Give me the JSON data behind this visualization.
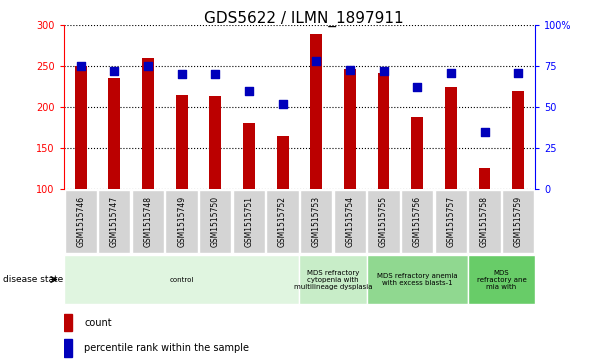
{
  "title": "GDS5622 / ILMN_1897911",
  "samples": [
    "GSM1515746",
    "GSM1515747",
    "GSM1515748",
    "GSM1515749",
    "GSM1515750",
    "GSM1515751",
    "GSM1515752",
    "GSM1515753",
    "GSM1515754",
    "GSM1515755",
    "GSM1515756",
    "GSM1515757",
    "GSM1515758",
    "GSM1515759"
  ],
  "counts": [
    250,
    235,
    260,
    215,
    213,
    180,
    165,
    290,
    247,
    242,
    188,
    225,
    125,
    220
  ],
  "percentile_ranks": [
    75,
    72,
    75,
    70,
    70,
    60,
    52,
    78,
    73,
    72,
    62,
    71,
    35,
    71
  ],
  "bar_color": "#bb0000",
  "dot_color": "#0000bb",
  "ylim_left": [
    100,
    300
  ],
  "ylim_right": [
    0,
    100
  ],
  "yticks_left": [
    100,
    150,
    200,
    250,
    300
  ],
  "yticks_right": [
    0,
    25,
    50,
    75,
    100
  ],
  "ytick_labels_right": [
    "0",
    "25",
    "50",
    "75",
    "100%"
  ],
  "disease_groups": [
    {
      "label": "control",
      "start": 0,
      "end": 7,
      "color": "#e0f5e0"
    },
    {
      "label": "MDS refractory\ncytopenia with\nmultilineage dysplasia",
      "start": 7,
      "end": 9,
      "color": "#c8edc8"
    },
    {
      "label": "MDS refractory anemia\nwith excess blasts-1",
      "start": 9,
      "end": 12,
      "color": "#90d890"
    },
    {
      "label": "MDS\nrefractory ane\nmia with",
      "start": 12,
      "end": 14,
      "color": "#68cc68"
    }
  ],
  "disease_state_label": "disease state",
  "legend_count_label": "count",
  "legend_percentile_label": "percentile rank within the sample",
  "bar_bottom": 100,
  "bar_width": 0.35,
  "dot_size": 35,
  "label_fontsize": 5.5,
  "title_fontsize": 11,
  "tick_fontsize": 7,
  "disease_fontsize": 5,
  "legend_fontsize": 7
}
